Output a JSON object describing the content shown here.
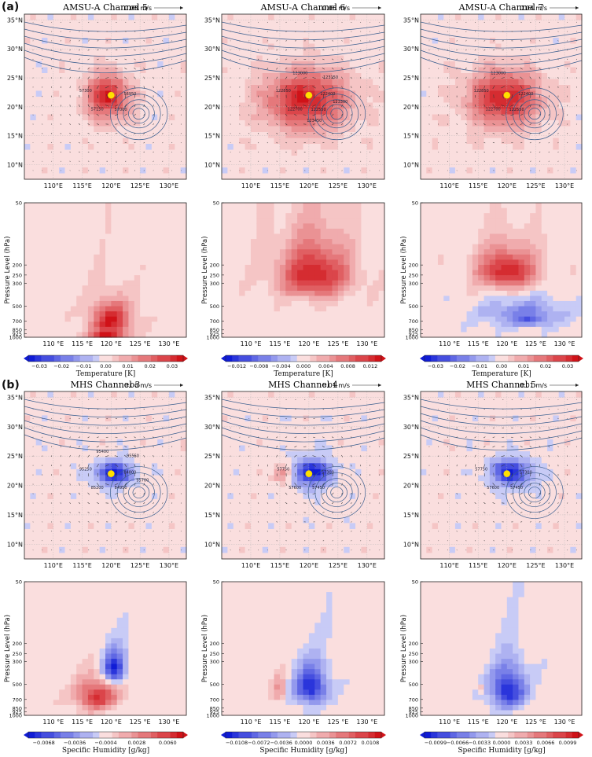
{
  "figure": {
    "section_a_label": "(a)",
    "section_b_label": "(b)",
    "lat_ticks": [
      "35°N",
      "30°N",
      "25°N",
      "20°N",
      "15°N",
      "10°N"
    ],
    "lon_ticks": [
      "110°E",
      "115°E",
      "120°E",
      "125°E",
      "130°E"
    ],
    "lon_ticks_spaced": [
      "110 °E",
      "115 °E",
      "120 °E",
      "125 °E",
      "130 °E"
    ],
    "pressure_ticks": [
      "50",
      "200",
      "250",
      "300",
      "500",
      "700",
      "850",
      "925",
      "1000"
    ],
    "pressure_label": "Pressure Level (hPa)",
    "typhoon_center_color": "#ffe000",
    "positive_color": "#d6202a",
    "negative_color": "#1a2fd8"
  },
  "chart_data": [
    {
      "id": "amsu5-map",
      "type": "heatmap",
      "title": "AMSU-A Channel 5",
      "scale": "0.08 m/s",
      "xlabel": "",
      "ylabel": "",
      "lon_range": [
        105,
        133
      ],
      "lat_range": [
        7.5,
        36
      ],
      "center": [
        120,
        22
      ],
      "blobs": [
        {
          "lon": 119.5,
          "lat": 21.8,
          "rx": 3.5,
          "ry": 3.8,
          "amp": 0.027
        }
      ],
      "contour_labels": [
        "56950",
        "57000",
        "57150",
        "57300"
      ]
    },
    {
      "id": "amsu6-map",
      "type": "heatmap",
      "title": "AMSU-A Channel 6",
      "scale": "0.06 m/s",
      "xlabel": "",
      "ylabel": "",
      "lon_range": [
        105,
        133
      ],
      "lat_range": [
        7.5,
        36
      ],
      "center": [
        120,
        22
      ],
      "blobs": [
        {
          "lon": 119.5,
          "lat": 21.2,
          "rx": 7.0,
          "ry": 5.0,
          "amp": 0.011
        }
      ],
      "contour_labels": [
        "122400",
        "122550",
        "122700",
        "122850",
        "123000",
        "123150",
        "123300",
        "123450"
      ]
    },
    {
      "id": "amsu7-map",
      "type": "heatmap",
      "title": "AMSU-A Channel 7",
      "scale": "0.04 m/s",
      "xlabel": "",
      "ylabel": "",
      "lon_range": [
        105,
        133
      ],
      "lat_range": [
        7.5,
        36
      ],
      "center": [
        120,
        22
      ],
      "blobs": [
        {
          "lon": 119.5,
          "lat": 21.5,
          "rx": 6.0,
          "ry": 4.6,
          "amp": 0.027
        }
      ],
      "contour_labels": [
        "122400",
        "122550",
        "122700",
        "122850",
        "123000"
      ]
    },
    {
      "id": "amsu5-cross",
      "type": "heatmap",
      "xlabel": "",
      "ylabel": "Pressure Level (hPa)",
      "lon_range": [
        105,
        133
      ],
      "pressure_range": [
        50,
        1000
      ],
      "blobs": [
        {
          "lon": 120,
          "p": 700,
          "rx": 3.5,
          "rp": 270,
          "amp": 0.027
        },
        {
          "lon": 119,
          "p": 960,
          "rx": 2.5,
          "rp": 80,
          "amp": 0.02
        }
      ]
    },
    {
      "id": "amsu6-cross",
      "type": "heatmap",
      "xlabel": "",
      "ylabel": "Pressure Level (hPa)",
      "lon_range": [
        105,
        133
      ],
      "pressure_range": [
        50,
        1000
      ],
      "blobs": [
        {
          "lon": 121,
          "p": 250,
          "rx": 6.0,
          "rp": 150,
          "amp": 0.011
        }
      ]
    },
    {
      "id": "amsu7-cross",
      "type": "heatmap",
      "xlabel": "",
      "ylabel": "Pressure Level (hPa)",
      "lon_range": [
        105,
        133
      ],
      "pressure_range": [
        50,
        1000
      ],
      "blobs": [
        {
          "lon": 120,
          "p": 230,
          "rx": 5.0,
          "rp": 100,
          "amp": 0.027
        },
        {
          "lon": 123,
          "p": 600,
          "rx": 7.0,
          "rp": 170,
          "amp": -0.014
        },
        {
          "lon": 124,
          "p": 700,
          "rx": 2.5,
          "rp": 60,
          "amp": -0.01
        }
      ]
    },
    {
      "id": "amsu-colorbar",
      "type": "colorbar",
      "label": "Temperature [K]",
      "ticks": [
        "−0.03",
        "−0.02",
        "−0.01",
        "0.00",
        "0.01",
        "0.02",
        "0.03"
      ],
      "range": [
        -0.03,
        0.03
      ]
    },
    {
      "id": "amsu6-colorbar",
      "type": "colorbar",
      "label": "Temperature [K]",
      "ticks": [
        "−0.012",
        "−0.008",
        "−0.004",
        "0.000",
        "0.004",
        "0.008",
        "0.012"
      ],
      "range": [
        -0.012,
        0.012
      ]
    },
    {
      "id": "amsu7-colorbar",
      "type": "colorbar",
      "label": "Temperature [K]",
      "ticks": [
        "−0.03",
        "−0.02",
        "−0.01",
        "0.00",
        "0.01",
        "0.02",
        "0.03"
      ],
      "range": [
        -0.03,
        0.03
      ]
    },
    {
      "id": "mhs3-map",
      "type": "heatmap",
      "title": "MHS Channel 3",
      "scale": "0.06 m/s",
      "xlabel": "",
      "ylabel": "",
      "lon_range": [
        105,
        133
      ],
      "lat_range": [
        7.5,
        36
      ],
      "center": [
        120,
        22
      ],
      "blobs": [
        {
          "lon": 120.5,
          "lat": 22.0,
          "rx": 3.2,
          "ry": 2.0,
          "amp": -0.0065
        }
      ],
      "contour_labels": [
        "84800",
        "84950",
        "85200",
        "95250",
        "95400",
        "95550",
        "95700"
      ]
    },
    {
      "id": "mhs4-map",
      "type": "heatmap",
      "title": "MHS Channel 4",
      "scale": "0.01 m/s",
      "xlabel": "",
      "ylabel": "",
      "lon_range": [
        105,
        133
      ],
      "lat_range": [
        7.5,
        36
      ],
      "center": [
        120,
        22
      ],
      "blobs": [
        {
          "lon": 120.5,
          "lat": 22.2,
          "rx": 3.5,
          "ry": 2.3,
          "amp": -0.011
        },
        {
          "lon": 115.5,
          "lat": 22.0,
          "rx": 1.6,
          "ry": 1.5,
          "amp": 0.006
        }
      ],
      "contour_labels": [
        "57300",
        "57450",
        "57600",
        "57750"
      ]
    },
    {
      "id": "mhs5-map",
      "type": "heatmap",
      "title": "MHS Channel 5",
      "scale": "0.01 m/s",
      "xlabel": "",
      "ylabel": "",
      "lon_range": [
        105,
        133
      ],
      "lat_range": [
        7.5,
        36
      ],
      "center": [
        120,
        22
      ],
      "blobs": [
        {
          "lon": 120.7,
          "lat": 22.2,
          "rx": 3.5,
          "ry": 2.3,
          "amp": -0.009
        }
      ],
      "contour_labels": [
        "57300",
        "57450",
        "57600",
        "57750"
      ]
    },
    {
      "id": "mhs3-cross",
      "type": "heatmap",
      "xlabel": "",
      "ylabel": "Pressure Level (hPa)",
      "lon_range": [
        105,
        133
      ],
      "pressure_range": [
        50,
        1000
      ],
      "blobs": [
        {
          "lon": 120.5,
          "p": 350,
          "rx": 2.0,
          "rp": 130,
          "amp": -0.0068
        },
        {
          "lon": 117.5,
          "p": 650,
          "rx": 3.5,
          "rp": 220,
          "amp": 0.006
        }
      ]
    },
    {
      "id": "mhs4-cross",
      "type": "heatmap",
      "xlabel": "",
      "ylabel": "Pressure Level (hPa)",
      "lon_range": [
        105,
        133
      ],
      "pressure_range": [
        50,
        1000
      ],
      "blobs": [
        {
          "lon": 120.3,
          "p": 530,
          "rx": 2.8,
          "rp": 230,
          "amp": -0.0108
        },
        {
          "lon": 115,
          "p": 560,
          "rx": 1.2,
          "rp": 180,
          "amp": 0.004
        }
      ]
    },
    {
      "id": "mhs5-cross",
      "type": "heatmap",
      "xlabel": "",
      "ylabel": "Pressure Level (hPa)",
      "lon_range": [
        105,
        133
      ],
      "pressure_range": [
        50,
        1000
      ],
      "blobs": [
        {
          "lon": 120.2,
          "p": 560,
          "rx": 3.0,
          "rp": 260,
          "amp": -0.0099
        },
        {
          "lon": 115.5,
          "p": 550,
          "rx": 0.6,
          "rp": 40,
          "amp": 0.004
        }
      ]
    },
    {
      "id": "mhs3-colorbar",
      "type": "colorbar",
      "label": "Specific Humidity [g/kg]",
      "ticks": [
        "−0.0068",
        "−0.0036",
        "−0.0004",
        "0.0028",
        "0.0060"
      ],
      "range": [
        -0.0068,
        0.0068
      ]
    },
    {
      "id": "mhs4-colorbar",
      "type": "colorbar",
      "label": "Specific Humidity [g/kg]",
      "ticks": [
        "−0.0108",
        "−0.0072",
        "−0.0036",
        "0.0000",
        "0.0036",
        "0.0072",
        "0.0108"
      ],
      "range": [
        -0.0108,
        0.0108
      ]
    },
    {
      "id": "mhs5-colorbar",
      "type": "colorbar",
      "label": "Specific Humidity [g/kg]",
      "ticks": [
        "−0.0099",
        "−0.0066",
        "−0.0033",
        "0.0000",
        "0.0033",
        "0.0066",
        "0.0099"
      ],
      "range": [
        -0.0099,
        0.0099
      ]
    }
  ]
}
